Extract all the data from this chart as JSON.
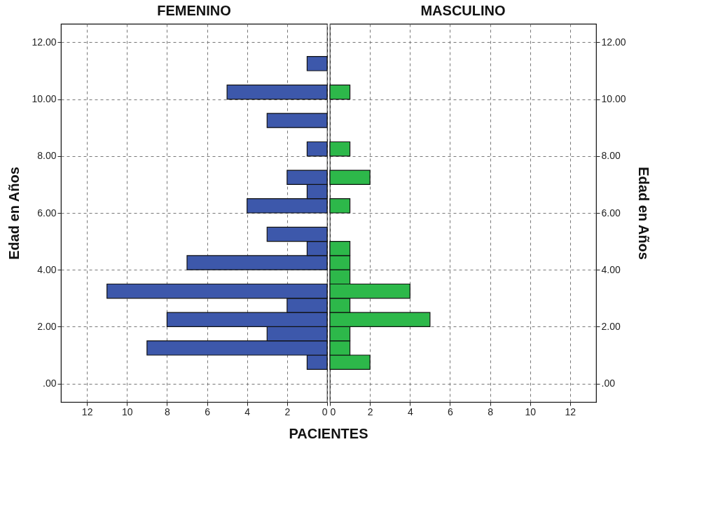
{
  "chart_data": [
    {
      "type": "histogram",
      "title": "FEMENINO",
      "xlabel": "PACIENTES",
      "ylabel": "Edad en Años",
      "orientation": "horizontal",
      "color": "#3d58ab",
      "grid": true,
      "bins": [
        0.5,
        1.0,
        1.5,
        2.0,
        2.5,
        3.0,
        3.5,
        4.0,
        4.5,
        5.0,
        5.5,
        6.0,
        6.5,
        7.0,
        7.5,
        8.0,
        8.5,
        9.0,
        9.5,
        10.0,
        10.5,
        11.0,
        11.5
      ],
      "values": [
        1,
        9,
        3,
        8,
        2,
        11,
        0,
        7,
        1,
        3,
        0,
        4,
        1,
        2,
        0,
        1,
        0,
        3,
        0,
        5,
        0,
        1
      ],
      "xlim": [
        13.3,
        0
      ],
      "xticks": [
        12,
        10,
        8,
        6,
        4,
        2,
        0
      ],
      "ylim": [
        -0.65,
        12.65
      ],
      "yticks": [
        {
          "value": 0,
          "label": ".00"
        },
        {
          "value": 2,
          "label": "2.00"
        },
        {
          "value": 4,
          "label": "4.00"
        },
        {
          "value": 6,
          "label": "6.00"
        },
        {
          "value": 8,
          "label": "8.00"
        },
        {
          "value": 10,
          "label": "10.00"
        },
        {
          "value": 12,
          "label": "12.00"
        }
      ]
    },
    {
      "type": "histogram",
      "title": "MASCULINO",
      "ylabel": "Edad en Años",
      "orientation": "horizontal",
      "color": "#2db84a",
      "grid": true,
      "bins": [
        0.5,
        1.0,
        1.5,
        2.0,
        2.5,
        3.0,
        3.5,
        4.0,
        4.5,
        5.0,
        5.5,
        6.0,
        6.5,
        7.0,
        7.5,
        8.0,
        8.5,
        9.0,
        9.5,
        10.0,
        10.5,
        11.0,
        11.5
      ],
      "values": [
        2,
        1,
        1,
        5,
        1,
        4,
        1,
        1,
        1,
        0,
        0,
        1,
        0,
        2,
        0,
        1,
        0,
        0,
        0,
        1,
        0,
        0
      ],
      "xlim": [
        0,
        13.3
      ],
      "xticks": [
        0,
        2,
        4,
        6,
        8,
        10,
        12
      ],
      "ylim": [
        -0.65,
        12.65
      ],
      "yticks": [
        {
          "value": 0,
          "label": ".00"
        },
        {
          "value": 2,
          "label": "2.00"
        },
        {
          "value": 4,
          "label": "4.00"
        },
        {
          "value": 6,
          "label": "6.00"
        },
        {
          "value": 8,
          "label": "8.00"
        },
        {
          "value": 10,
          "label": "10.00"
        },
        {
          "value": 12,
          "label": "12.00"
        }
      ]
    }
  ]
}
